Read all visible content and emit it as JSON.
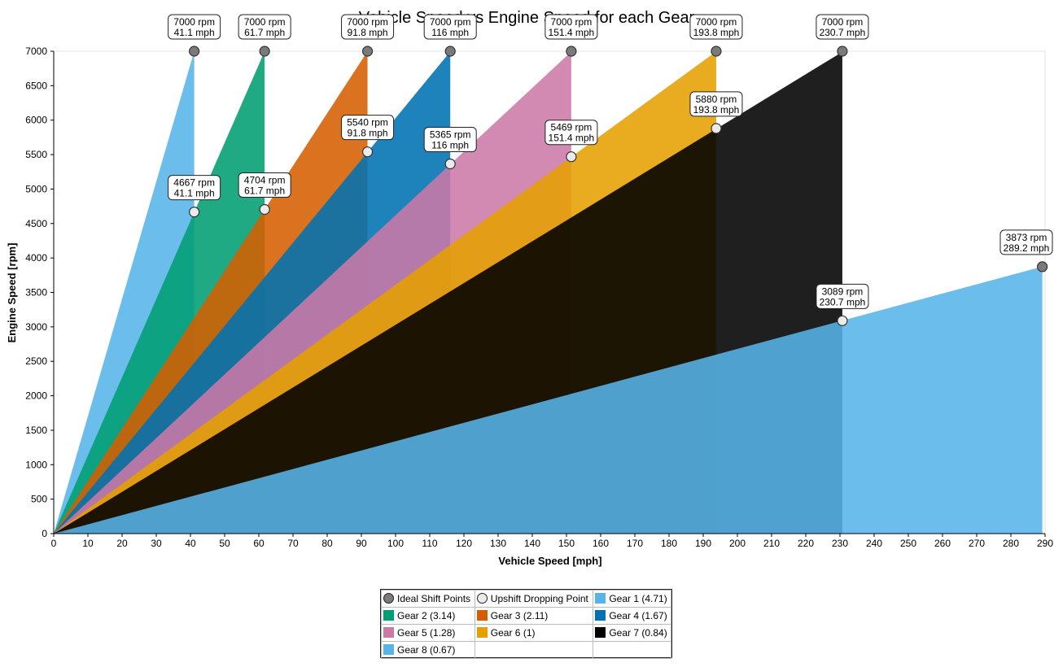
{
  "chart_data": {
    "type": "area",
    "title": "Vehicle Speed vs Engine Speed for each Gear",
    "xlabel": "Vehicle Speed [mph]",
    "ylabel": "Engine Speed [rpm]",
    "xlim": [
      0,
      290
    ],
    "ylim": [
      0,
      7000
    ],
    "xticks": [
      0,
      10,
      20,
      30,
      40,
      50,
      60,
      70,
      80,
      90,
      100,
      110,
      120,
      130,
      140,
      150,
      160,
      170,
      180,
      190,
      200,
      210,
      220,
      230,
      240,
      250,
      260,
      270,
      280,
      290
    ],
    "yticks": [
      0,
      500,
      1000,
      1500,
      2000,
      2500,
      3000,
      3500,
      4000,
      4500,
      5000,
      5500,
      6000,
      6500,
      7000
    ],
    "grid": false,
    "legend_position": "bottom",
    "series": [
      {
        "name": "Gear 1 (4.71)",
        "color": "#56b4e9",
        "rpm_per_mph": 170.3,
        "shift_speed": 41.1
      },
      {
        "name": "Gear 2 (3.14)",
        "color": "#009e73",
        "rpm_per_mph": 113.5,
        "shift_speed": 61.7
      },
      {
        "name": "Gear 3 (2.11)",
        "color": "#d55e00",
        "rpm_per_mph": 76.3,
        "shift_speed": 91.8
      },
      {
        "name": "Gear 4 (1.67)",
        "color": "#0072b2",
        "rpm_per_mph": 60.3,
        "shift_speed": 116
      },
      {
        "name": "Gear 5 (1.28)",
        "color": "#cc79a7",
        "rpm_per_mph": 46.2,
        "shift_speed": 151.4
      },
      {
        "name": "Gear 6 (1)",
        "color": "#e69f00",
        "rpm_per_mph": 36.1,
        "shift_speed": 193.8
      },
      {
        "name": "Gear 7 (0.84)",
        "color": "#000000",
        "rpm_per_mph": 30.3,
        "shift_speed": 230.7
      },
      {
        "name": "Gear 8 (0.67)",
        "color": "#56b4e9",
        "rpm_per_mph": 13.4,
        "shift_speed": 289.2
      }
    ],
    "ideal_shift_points": {
      "name": "Ideal Shift Points",
      "points": [
        {
          "x": 41.1,
          "y": 7000,
          "label": [
            "7000 rpm",
            "41.1 mph"
          ]
        },
        {
          "x": 61.7,
          "y": 7000,
          "label": [
            "7000 rpm",
            "61.7 mph"
          ]
        },
        {
          "x": 91.8,
          "y": 7000,
          "label": [
            "7000 rpm",
            "91.8 mph"
          ]
        },
        {
          "x": 116,
          "y": 7000,
          "label": [
            "7000 rpm",
            "116 mph"
          ]
        },
        {
          "x": 151.4,
          "y": 7000,
          "label": [
            "7000 rpm",
            "151.4 mph"
          ]
        },
        {
          "x": 193.8,
          "y": 7000,
          "label": [
            "7000 rpm",
            "193.8 mph"
          ]
        },
        {
          "x": 230.7,
          "y": 7000,
          "label": [
            "7000 rpm",
            "230.7 mph"
          ]
        },
        {
          "x": 289.2,
          "y": 3873,
          "label": [
            "3873 rpm",
            "289.2 mph"
          ]
        }
      ]
    },
    "upshift_dropping_points": {
      "name": "Upshift Dropping Point",
      "points": [
        {
          "x": 41.1,
          "y": 4667,
          "label": [
            "4667 rpm",
            "41.1 mph"
          ]
        },
        {
          "x": 61.7,
          "y": 4704,
          "label": [
            "4704 rpm",
            "61.7 mph"
          ]
        },
        {
          "x": 91.8,
          "y": 5540,
          "label": [
            "5540 rpm",
            "91.8 mph"
          ]
        },
        {
          "x": 116,
          "y": 5365,
          "label": [
            "5365 rpm",
            "116 mph"
          ]
        },
        {
          "x": 151.4,
          "y": 5469,
          "label": [
            "5469 rpm",
            "151.4 mph"
          ]
        },
        {
          "x": 193.8,
          "y": 5880,
          "label": [
            "5880 rpm",
            "193.8 mph"
          ]
        },
        {
          "x": 230.7,
          "y": 3089,
          "label": [
            "3089 rpm",
            "230.7 mph"
          ]
        }
      ]
    }
  }
}
